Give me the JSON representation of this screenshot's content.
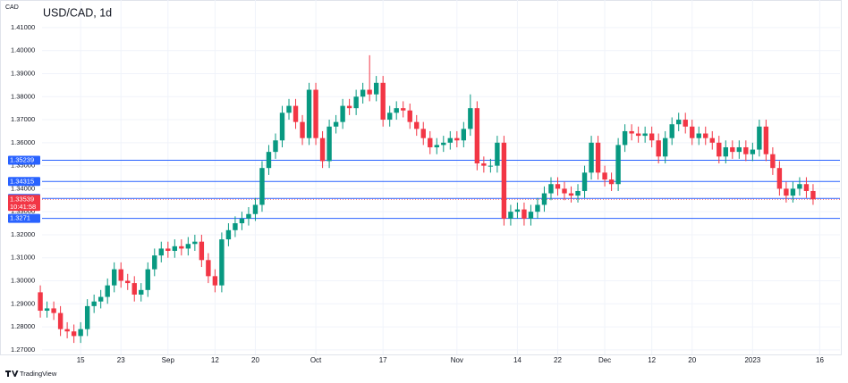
{
  "chart_data": {
    "type": "candlestick",
    "title": "USD/CAD, 1d",
    "currency": "CAD",
    "countdown": "10:41:58",
    "grid": true,
    "ylim": [
      1.268,
      1.422
    ],
    "yticks": [
      {
        "value": 1.27,
        "label": "1.27000"
      },
      {
        "value": 1.28,
        "label": "1.28000"
      },
      {
        "value": 1.29,
        "label": "1.29000"
      },
      {
        "value": 1.3,
        "label": "1.30000"
      },
      {
        "value": 1.31,
        "label": "1.31000"
      },
      {
        "value": 1.32,
        "label": "1.32000"
      },
      {
        "value": 1.33,
        "label": "1.33000"
      },
      {
        "value": 1.34,
        "label": "1.34000"
      },
      {
        "value": 1.35,
        "label": "1.35000"
      },
      {
        "value": 1.36,
        "label": "1.36000"
      },
      {
        "value": 1.37,
        "label": "1.37000"
      },
      {
        "value": 1.38,
        "label": "1.38000"
      },
      {
        "value": 1.39,
        "label": "1.39000"
      },
      {
        "value": 1.4,
        "label": "1.40000"
      },
      {
        "value": 1.41,
        "label": "1.41000"
      }
    ],
    "xlim": [
      -6,
      119
    ],
    "xticks": [
      {
        "value": 6,
        "label": "15"
      },
      {
        "value": 12,
        "label": "23"
      },
      {
        "value": 19,
        "label": "Sep"
      },
      {
        "value": 26,
        "label": "12"
      },
      {
        "value": 32,
        "label": "20"
      },
      {
        "value": 41,
        "label": "Oct"
      },
      {
        "value": 51,
        "label": "17"
      },
      {
        "value": 62,
        "label": "Nov"
      },
      {
        "value": 71,
        "label": "14"
      },
      {
        "value": 77,
        "label": "22"
      },
      {
        "value": 84,
        "label": "Dec"
      },
      {
        "value": 91,
        "label": "12"
      },
      {
        "value": 97,
        "label": "20"
      },
      {
        "value": 106,
        "label": "2023"
      },
      {
        "value": 116,
        "label": "16"
      }
    ],
    "levels": {
      "color": "#2962ff",
      "values": [
        1.35239,
        1.34315,
        1.33581,
        1.3271
      ]
    },
    "series": [
      {
        "up_color": "#089981",
        "down_color": "#f23645",
        "open": [
          1.295,
          1.287,
          1.288,
          1.286,
          1.279,
          1.278,
          1.276,
          1.279,
          1.289,
          1.291,
          1.293,
          1.298,
          1.305,
          1.3,
          1.299,
          1.294,
          1.296,
          1.305,
          1.311,
          1.314,
          1.313,
          1.315,
          1.314,
          1.316,
          1.317,
          1.309,
          1.302,
          1.298,
          1.318,
          1.322,
          1.325,
          1.327,
          1.329,
          1.333,
          1.349,
          1.356,
          1.361,
          1.373,
          1.376,
          1.369,
          1.362,
          1.383,
          1.362,
          1.352,
          1.367,
          1.369,
          1.376,
          1.375,
          1.38,
          1.383,
          1.381,
          1.386,
          1.37,
          1.373,
          1.375,
          1.374,
          1.369,
          1.366,
          1.362,
          1.358,
          1.359,
          1.36,
          1.362,
          1.361,
          1.366,
          1.375,
          1.351,
          1.35,
          1.35,
          1.36,
          1.327,
          1.33,
          1.331,
          1.327,
          1.33,
          1.333,
          1.338,
          1.342,
          1.34,
          1.338,
          1.337,
          1.339,
          1.347,
          1.36,
          1.347,
          1.344,
          1.342,
          1.359,
          1.365,
          1.364,
          1.363,
          1.364,
          1.361,
          1.354,
          1.362,
          1.368,
          1.37,
          1.367,
          1.362,
          1.364,
          1.362,
          1.36,
          1.354,
          1.358,
          1.356,
          1.358,
          1.355,
          1.357,
          1.367,
          1.355,
          1.349,
          1.34,
          1.337,
          1.34,
          1.342,
          1.339
        ],
        "high": [
          1.298,
          1.291,
          1.291,
          1.289,
          1.282,
          1.281,
          1.282,
          1.292,
          1.294,
          1.296,
          1.301,
          1.308,
          1.308,
          1.303,
          1.302,
          1.299,
          1.308,
          1.314,
          1.317,
          1.317,
          1.318,
          1.318,
          1.319,
          1.32,
          1.32,
          1.312,
          1.305,
          1.321,
          1.325,
          1.328,
          1.33,
          1.332,
          1.336,
          1.352,
          1.359,
          1.364,
          1.376,
          1.379,
          1.379,
          1.372,
          1.386,
          1.386,
          1.365,
          1.37,
          1.372,
          1.379,
          1.379,
          1.383,
          1.386,
          1.398,
          1.389,
          1.389,
          1.376,
          1.378,
          1.378,
          1.377,
          1.372,
          1.369,
          1.365,
          1.362,
          1.363,
          1.365,
          1.365,
          1.369,
          1.381,
          1.378,
          1.354,
          1.353,
          1.363,
          1.363,
          1.333,
          1.334,
          1.334,
          1.333,
          1.336,
          1.341,
          1.345,
          1.345,
          1.343,
          1.341,
          1.342,
          1.35,
          1.363,
          1.363,
          1.35,
          1.347,
          1.362,
          1.368,
          1.368,
          1.367,
          1.367,
          1.367,
          1.364,
          1.365,
          1.371,
          1.373,
          1.373,
          1.37,
          1.367,
          1.367,
          1.365,
          1.363,
          1.361,
          1.361,
          1.361,
          1.361,
          1.36,
          1.37,
          1.37,
          1.358,
          1.352,
          1.343,
          1.343,
          1.345,
          1.345,
          1.342
        ],
        "low": [
          1.284,
          1.284,
          1.283,
          1.276,
          1.275,
          1.273,
          1.273,
          1.276,
          1.286,
          1.288,
          1.29,
          1.295,
          1.297,
          1.296,
          1.291,
          1.291,
          1.293,
          1.302,
          1.308,
          1.31,
          1.31,
          1.311,
          1.311,
          1.313,
          1.306,
          1.299,
          1.295,
          1.295,
          1.315,
          1.319,
          1.322,
          1.324,
          1.326,
          1.33,
          1.346,
          1.353,
          1.358,
          1.37,
          1.366,
          1.359,
          1.359,
          1.359,
          1.349,
          1.349,
          1.364,
          1.366,
          1.372,
          1.372,
          1.377,
          1.378,
          1.378,
          1.367,
          1.367,
          1.37,
          1.371,
          1.366,
          1.363,
          1.359,
          1.355,
          1.355,
          1.356,
          1.357,
          1.358,
          1.358,
          1.363,
          1.348,
          1.347,
          1.347,
          1.347,
          1.324,
          1.324,
          1.327,
          1.324,
          1.324,
          1.327,
          1.33,
          1.335,
          1.337,
          1.335,
          1.334,
          1.334,
          1.336,
          1.344,
          1.344,
          1.341,
          1.339,
          1.339,
          1.356,
          1.361,
          1.36,
          1.36,
          1.358,
          1.351,
          1.351,
          1.359,
          1.365,
          1.364,
          1.359,
          1.359,
          1.359,
          1.357,
          1.351,
          1.351,
          1.353,
          1.353,
          1.352,
          1.352,
          1.354,
          1.352,
          1.346,
          1.337,
          1.334,
          1.334,
          1.337,
          1.336,
          1.333
        ],
        "close": [
          1.287,
          1.288,
          1.286,
          1.279,
          1.278,
          1.276,
          1.279,
          1.289,
          1.291,
          1.293,
          1.298,
          1.305,
          1.3,
          1.299,
          1.294,
          1.296,
          1.305,
          1.311,
          1.314,
          1.313,
          1.315,
          1.314,
          1.316,
          1.317,
          1.309,
          1.302,
          1.298,
          1.318,
          1.322,
          1.325,
          1.327,
          1.329,
          1.333,
          1.349,
          1.356,
          1.361,
          1.373,
          1.376,
          1.369,
          1.362,
          1.383,
          1.362,
          1.352,
          1.367,
          1.369,
          1.376,
          1.375,
          1.38,
          1.383,
          1.381,
          1.386,
          1.37,
          1.373,
          1.375,
          1.374,
          1.369,
          1.366,
          1.362,
          1.358,
          1.359,
          1.36,
          1.362,
          1.361,
          1.366,
          1.375,
          1.351,
          1.35,
          1.35,
          1.36,
          1.327,
          1.33,
          1.331,
          1.327,
          1.33,
          1.333,
          1.338,
          1.342,
          1.34,
          1.338,
          1.337,
          1.339,
          1.347,
          1.36,
          1.347,
          1.344,
          1.342,
          1.359,
          1.365,
          1.364,
          1.363,
          1.364,
          1.361,
          1.354,
          1.362,
          1.368,
          1.37,
          1.367,
          1.362,
          1.364,
          1.362,
          1.36,
          1.354,
          1.358,
          1.356,
          1.358,
          1.355,
          1.357,
          1.367,
          1.355,
          1.349,
          1.34,
          1.337,
          1.34,
          1.342,
          1.339,
          1.33539
        ]
      }
    ]
  },
  "branding": "TradingView"
}
